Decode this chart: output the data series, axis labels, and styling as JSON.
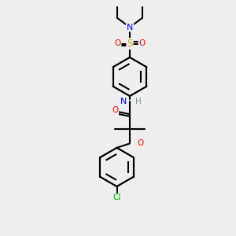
{
  "bg_color": "#efefef",
  "bond_color": "#000000",
  "atom_colors": {
    "N": "#0000ff",
    "O": "#ff0000",
    "S": "#ccaa00",
    "Cl": "#00aa00",
    "H": "#7a9999",
    "C": "#000000"
  },
  "fig_size": [
    3.0,
    3.0
  ],
  "dpi": 100,
  "xlim": [
    0,
    10
  ],
  "ylim": [
    0,
    10
  ]
}
